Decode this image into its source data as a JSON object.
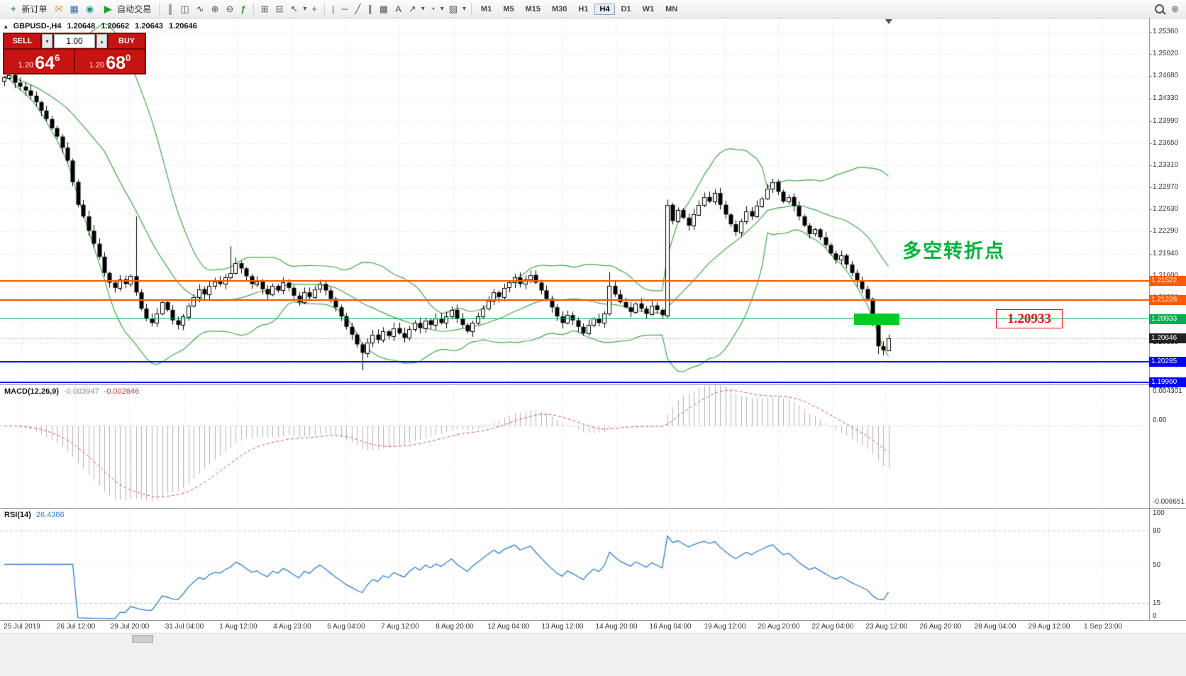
{
  "toolbar": {
    "new_order": "新订单",
    "autotrading": "自动交易",
    "timeframes": [
      "M1",
      "M5",
      "M15",
      "M30",
      "H1",
      "H4",
      "D1",
      "W1",
      "MN"
    ],
    "active_timeframe": "H4"
  },
  "icons": {
    "collapse": "▴",
    "caret_down": "▾",
    "caret_up": "▴",
    "new_order": "+",
    "mailbox": "✉",
    "terminal": "▦",
    "navigator": "◉",
    "autoplay": "▶",
    "bars": "║",
    "candles": "◫",
    "linechart": "∿",
    "zoom_in": "⊕",
    "zoom_out": "⊖",
    "indicators": "ƒ",
    "tile1": "⊞",
    "tile2": "⊟",
    "cursor": "↖",
    "crosshair": "+",
    "vline": "|",
    "hline": "─",
    "trendline": "╱",
    "channel": "∥",
    "grid": "▦",
    "text": "A",
    "arrow": "↗",
    "clock": "◔",
    "template": "▨",
    "plus_circle": "⊕"
  },
  "quote_panel": {
    "sell_label": "SELL",
    "buy_label": "BUY",
    "volume": "1.00",
    "red": "#c81313",
    "sell_price": {
      "prefix": "1.20",
      "big": "64",
      "sup": "6"
    },
    "buy_price": {
      "prefix": "1.20",
      "big": "68",
      "sup": "0"
    }
  },
  "chart": {
    "symbol_period": "GBPUSD-,H4",
    "open": "1.20648",
    "high": "1.20662",
    "low": "1.20643",
    "close": "1.20646",
    "annotation": "多空转折点",
    "annotation_color": "#00b33c",
    "callout": "1.20933",
    "callout_color": "#ff0000"
  },
  "chart_data": {
    "type": "candlestick",
    "symbol": "GBPUSD-",
    "timeframe": "H4",
    "first_open": 1.246,
    "closes": [
      1.2466,
      1.247,
      1.2458,
      1.2452,
      1.2446,
      1.2438,
      1.2428,
      1.2415,
      1.2402,
      1.2388,
      1.2375,
      1.2358,
      1.2338,
      1.2305,
      1.227,
      1.2252,
      1.223,
      1.221,
      1.219,
      1.2165,
      1.215,
      1.2142,
      1.2155,
      1.2148,
      1.216,
      1.2135,
      1.211,
      1.2095,
      1.2088,
      1.2102,
      1.212,
      1.2108,
      1.2092,
      1.2085,
      1.2098,
      1.2115,
      1.2128,
      1.214,
      1.2132,
      1.2145,
      1.2152,
      1.2148,
      1.2158,
      1.2165,
      1.218,
      1.2172,
      1.216,
      1.2148,
      1.2152,
      1.214,
      1.2132,
      1.2145,
      1.2138,
      1.215,
      1.2142,
      1.213,
      1.212,
      1.2135,
      1.2128,
      1.214,
      1.2148,
      1.2138,
      1.2125,
      1.2112,
      1.2098,
      1.2082,
      1.207,
      1.2055,
      1.2042,
      1.2058,
      1.207,
      1.2062,
      1.2075,
      1.2068,
      1.208,
      1.2072,
      1.2065,
      1.2078,
      1.2088,
      1.208,
      1.2092,
      1.2085,
      1.2095,
      1.2088,
      1.2098,
      1.2108,
      1.2095,
      1.2085,
      1.2075,
      1.2088,
      1.2098,
      1.211,
      1.2122,
      1.2135,
      1.2128,
      1.2142,
      1.215,
      1.2158,
      1.2148,
      1.2155,
      1.2162,
      1.215,
      1.2138,
      1.2125,
      1.2112,
      1.2098,
      1.2088,
      1.21,
      1.2092,
      1.2082,
      1.2072,
      1.2085,
      1.2095,
      1.2088,
      1.2102,
      1.2145,
      1.2132,
      1.212,
      1.2112,
      1.2105,
      1.2118,
      1.211,
      1.2102,
      1.2115,
      1.2108,
      1.21,
      1.227,
      1.2245,
      1.2262,
      1.225,
      1.2238,
      1.2255,
      1.227,
      1.2282,
      1.2275,
      1.2288,
      1.227,
      1.2255,
      1.224,
      1.2228,
      1.2245,
      1.226,
      1.2252,
      1.2268,
      1.228,
      1.2295,
      1.2305,
      1.229,
      1.2275,
      1.2282,
      1.2268,
      1.2252,
      1.2238,
      1.2225,
      1.2232,
      1.222,
      1.2208,
      1.2195,
      1.2185,
      1.2192,
      1.2178,
      1.2165,
      1.2152,
      1.214,
      1.2125,
      1.2085,
      1.2052,
      1.2046,
      1.20646
    ],
    "wick_overrides": {
      "1": {
        "high": 1.2476
      },
      "25": {
        "high": 1.2252
      },
      "43": {
        "high": 1.2206
      },
      "68": {
        "low": 1.2015
      },
      "115": {
        "high": 1.2166
      },
      "126": {
        "high": 1.2278,
        "low": 1.2096
      },
      "146": {
        "high": 1.231
      },
      "166": {
        "low": 1.204
      },
      "167": {
        "low": 1.2038
      },
      "168": {
        "low": 1.2056,
        "high": 1.207
      }
    },
    "price_axis": {
      "max": 1.2557,
      "min": 1.19932,
      "ticks": [
        "1.25360",
        "1.25020",
        "1.24680",
        "1.24330",
        "1.23990",
        "1.23650",
        "1.23310",
        "1.22970",
        "1.22630",
        "1.22290",
        "1.21940",
        "1.21600",
        "1.21260",
        "1.20920",
        "1.20580",
        "1.20240",
        "1.19900"
      ]
    },
    "time_axis": [
      "25 Jul 2019",
      "26 Jul 12:00",
      "29 Jul 20:00",
      "31 Jul 04:00",
      "1 Aug 12:00",
      "4 Aug 23:00",
      "6 Aug 04:00",
      "7 Aug 12:00",
      "8 Aug 20:00",
      "12 Aug 04:00",
      "13 Aug 12:00",
      "14 Aug 20:00",
      "16 Aug 04:00",
      "19 Aug 12:00",
      "20 Aug 20:00",
      "22 Aug 04:00",
      "23 Aug 12:00",
      "26 Aug 20:00",
      "28 Aug 04:00",
      "29 Aug 12:00",
      "1 Sep 23:00"
    ],
    "levels": [
      {
        "price": 1.21522,
        "label": "1.21522",
        "color": "#ff5a00",
        "width": 2
      },
      {
        "price": 1.21228,
        "label": "1.21228",
        "color": "#ff5a00",
        "width": 2
      },
      {
        "price": 1.20933,
        "label": "1.20933",
        "color": "#00b050",
        "width": 1
      },
      {
        "price": 1.20285,
        "label": "1.20285",
        "color": "#0000ff",
        "width": 2
      },
      {
        "price": 1.1996,
        "label": "1.19960",
        "color": "#0000ff",
        "width": 2
      }
    ],
    "current_price": {
      "value": 1.20646,
      "label": "1.20646",
      "tag_color": "#222222"
    },
    "highlight_box": {
      "price": 1.20933,
      "color": "#00cc22"
    },
    "bollinger": {
      "period": 20,
      "deviation": 2,
      "color": "#3faa47"
    },
    "macd": {
      "name": "MACD(12,26,9)",
      "value1": "-0.003947",
      "value2": "-0.002646",
      "axis": {
        "max": "0.004301",
        "zero": "0.00",
        "min": "-0.008651"
      },
      "range": {
        "max": 0.004301,
        "min": -0.008651
      },
      "histogram_color": "#b4b4b4",
      "signal_color": "#e05050"
    },
    "rsi": {
      "name": "RSI(14)",
      "value": "26.4386",
      "axis_labels": [
        "100",
        "80",
        "50",
        "15",
        "0"
      ],
      "axis_values": [
        100,
        80,
        50,
        15,
        0
      ],
      "levels": [
        80,
        15
      ],
      "color": "#2a7fd4"
    }
  }
}
